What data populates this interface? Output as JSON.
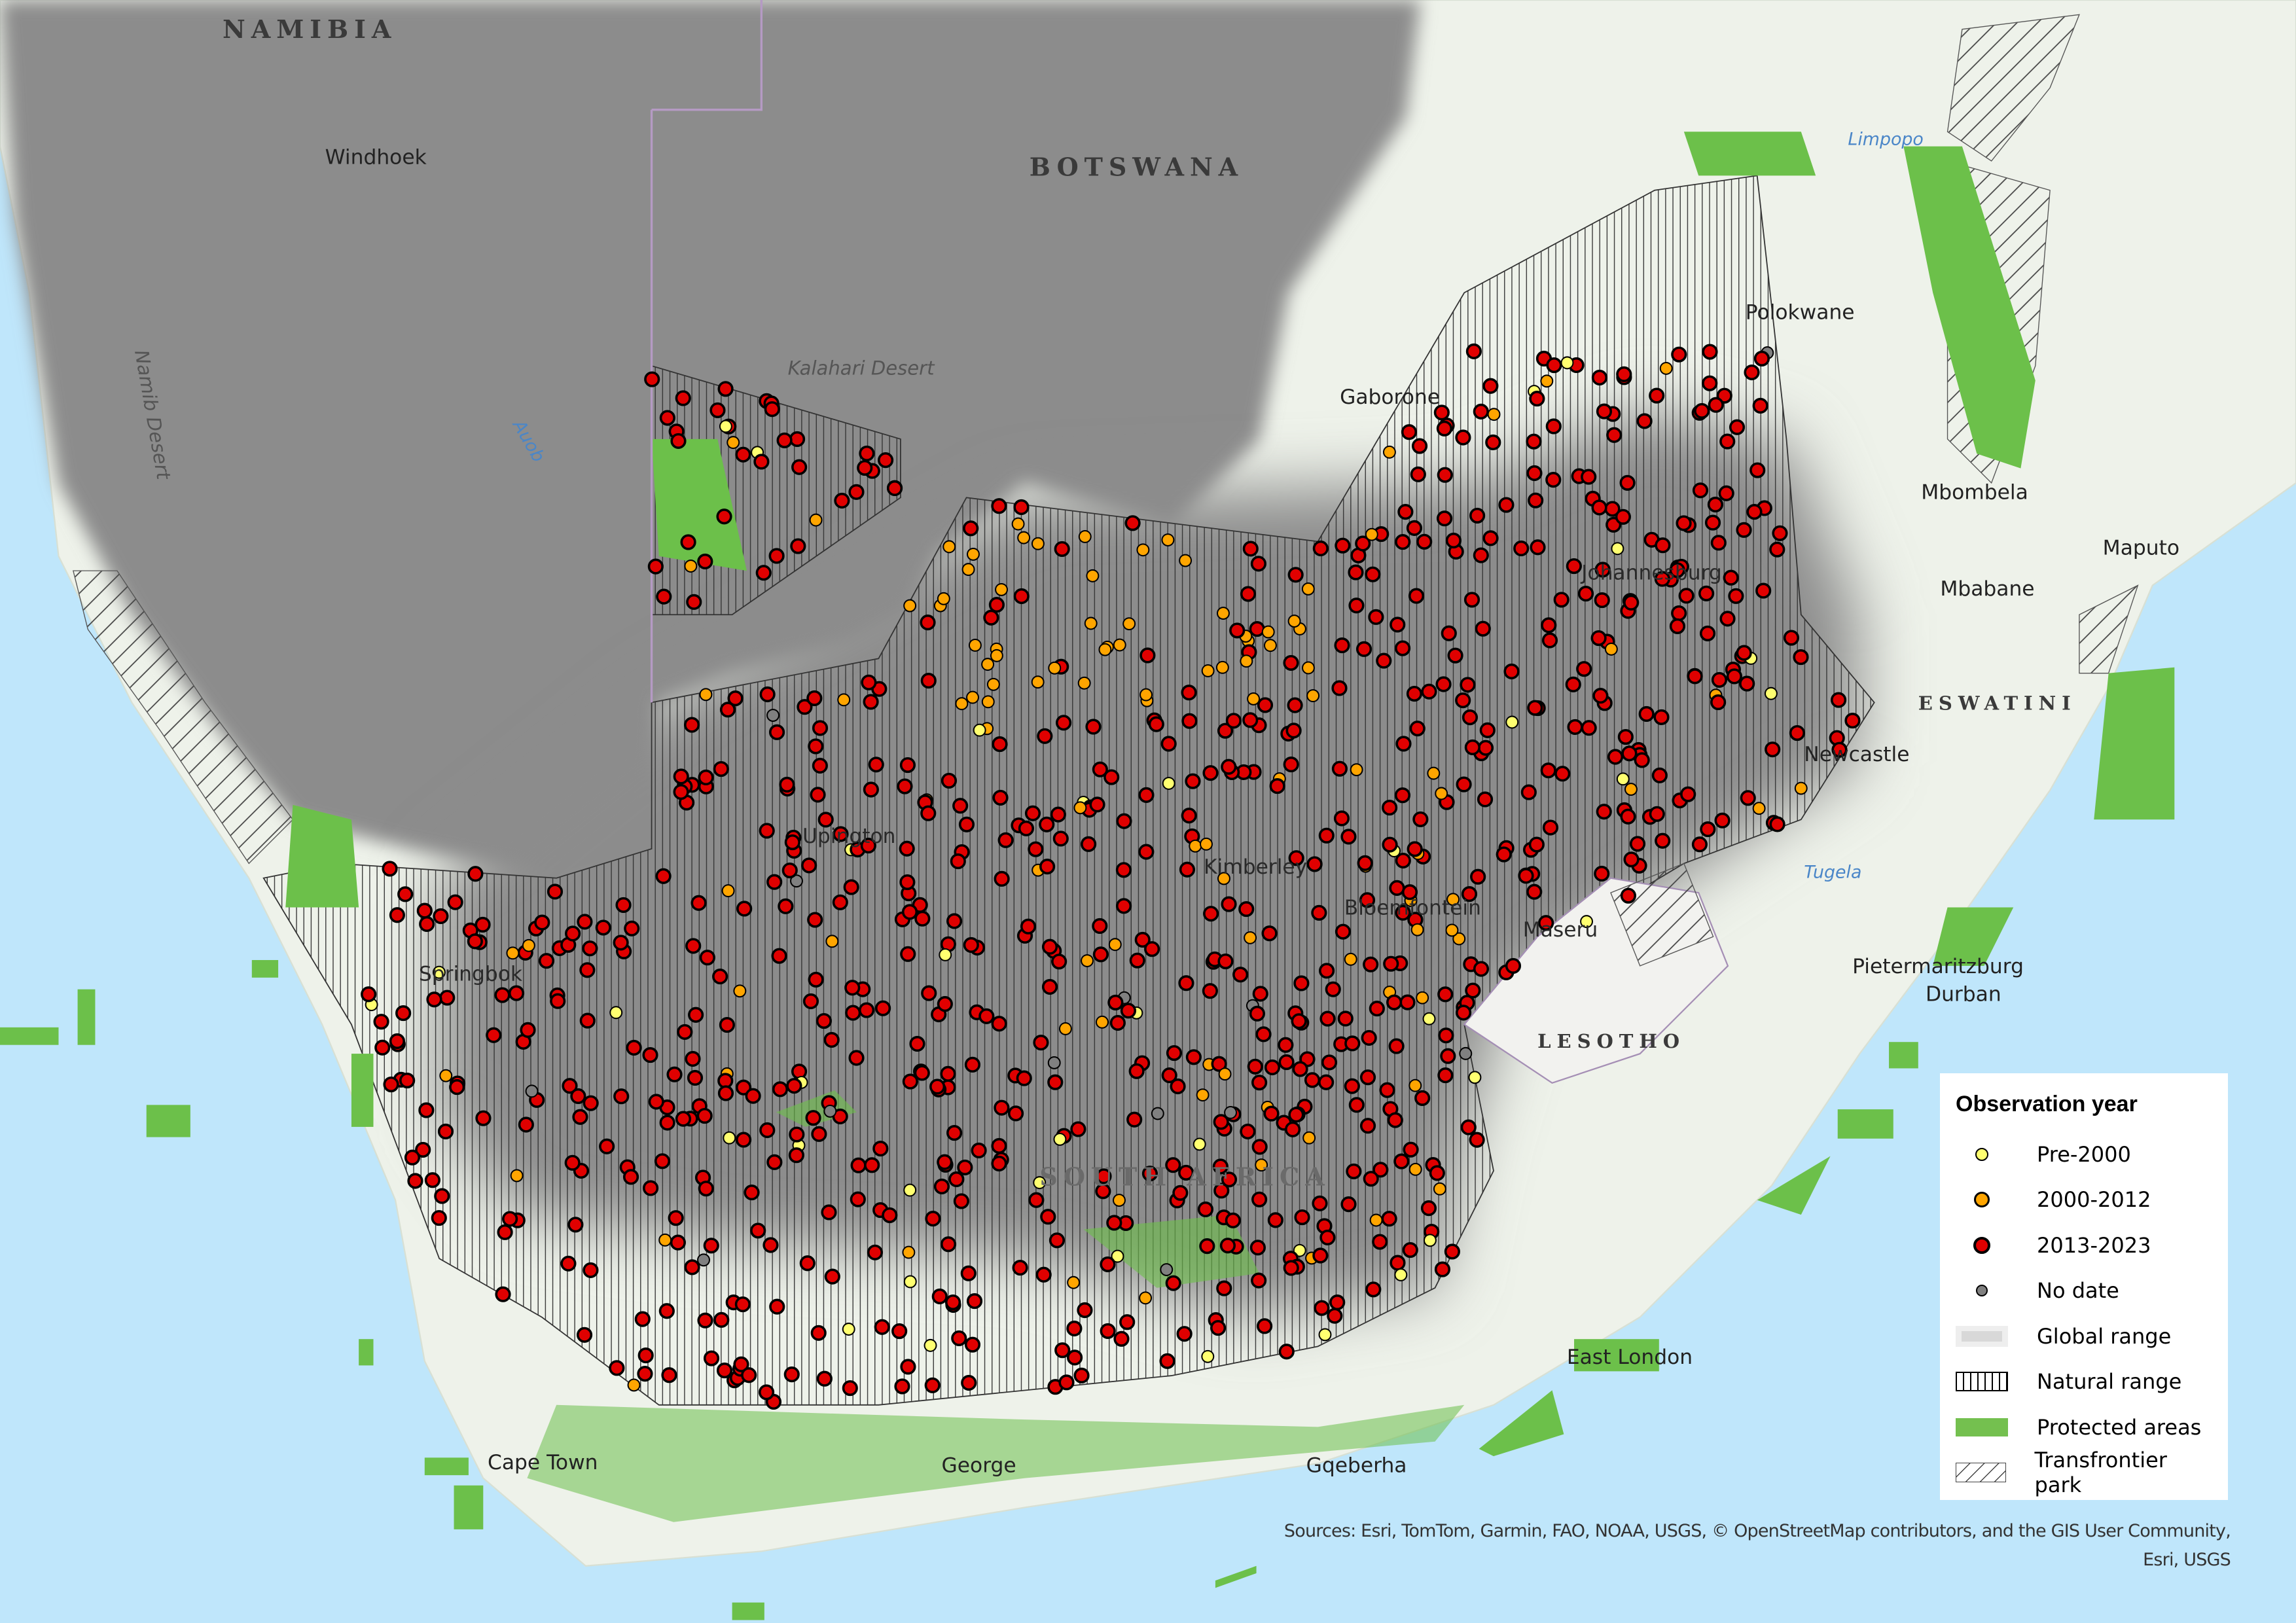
{
  "map": {
    "countries": [
      "NAMIBIA",
      "BOTSWANA",
      "LESOTHO",
      "ESWATINI",
      "SOUTH AFRICA"
    ],
    "cities": [
      "Windhoek",
      "Gaborone",
      "Polokwane",
      "Mbombela",
      "Maputo",
      "Mbabane",
      "Johannesburg",
      "Newcastle",
      "Upington",
      "Kimberley",
      "Bloemfontein",
      "Maseru",
      "Springbok",
      "Pietermaritzburg",
      "Durban",
      "East London",
      "Gqeberha",
      "George",
      "Cape Town"
    ],
    "features": [
      "Kalahari Desert",
      "Namib Desert"
    ],
    "rivers": [
      "Limpopo",
      "Auob",
      "Tugela"
    ],
    "colors": {
      "ocean": "#bfe6fb",
      "land": "#eef2ea",
      "dark_overlay": "#8c8c8c",
      "protected": "#6cc04a",
      "pre2000": "#ffff70",
      "y2000_2012": "#ffa500",
      "y2013_2023": "#e00000",
      "no_date": "#808080"
    }
  },
  "legend": {
    "title": "Observation year",
    "items": [
      {
        "label": "Pre-2000",
        "symbol": "yellow-dot"
      },
      {
        "label": "2000-2012",
        "symbol": "orange-dot"
      },
      {
        "label": "2013-2023",
        "symbol": "red-dot"
      },
      {
        "label": "No date",
        "symbol": "gray-dot"
      },
      {
        "label": "Global range",
        "symbol": "gray-blur-fill"
      },
      {
        "label": "Natural range",
        "symbol": "vertical-hatch"
      },
      {
        "label": "Protected areas",
        "symbol": "green-fill"
      },
      {
        "label": "Transfrontier park",
        "symbol": "diagonal-hatch"
      }
    ]
  },
  "attribution": {
    "line1": "Sources: Esri, TomTom, Garmin, FAO, NOAA, USGS, © OpenStreetMap contributors, and the GIS User Community,",
    "line2": "Esri, USGS"
  }
}
